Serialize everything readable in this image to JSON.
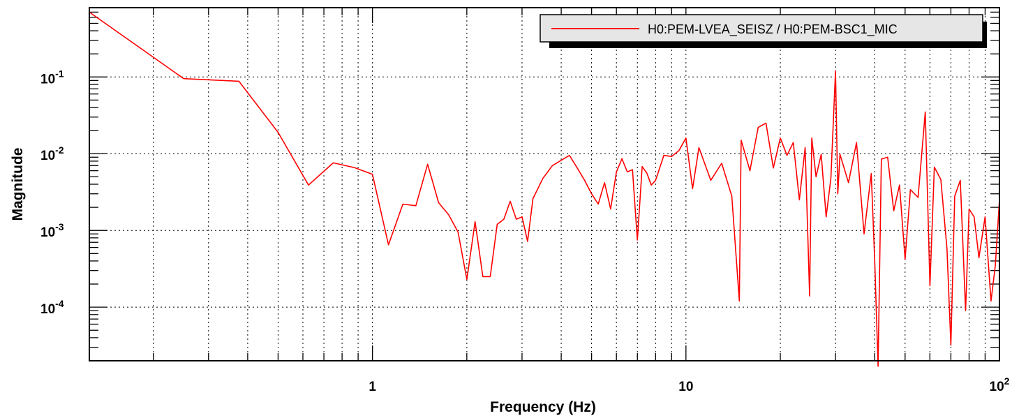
{
  "chart_data": {
    "type": "line",
    "title": "",
    "xlabel": "Frequency (Hz)",
    "ylabel": "Magnitude",
    "xscale": "log",
    "yscale": "log",
    "xlim": [
      0.125,
      100
    ],
    "ylim": [
      2e-05,
      0.8
    ],
    "grid": true,
    "legend_position": "top-right",
    "x_tick_labels": [
      {
        "value": 1,
        "base": "1",
        "exp": ""
      },
      {
        "value": 10,
        "base": "10",
        "exp": ""
      },
      {
        "value": 100,
        "base": "10",
        "exp": "2"
      }
    ],
    "y_tick_labels": [
      {
        "value": 0.1,
        "base": "10",
        "exp": "-1"
      },
      {
        "value": 0.01,
        "base": "10",
        "exp": "-2"
      },
      {
        "value": 0.001,
        "base": "10",
        "exp": "-3"
      },
      {
        "value": 0.0001,
        "base": "10",
        "exp": "-4"
      }
    ],
    "series": [
      {
        "name": "H0:PEM-LVEA_SEISZ / H0:PEM-BSC1_MIC",
        "color": "#ff0000",
        "x": [
          0.125,
          0.25,
          0.375,
          0.5,
          0.625,
          0.75,
          0.875,
          1.0,
          1.125,
          1.25,
          1.375,
          1.5,
          1.625,
          1.75,
          1.875,
          2.0,
          2.125,
          2.25,
          2.375,
          2.5,
          2.625,
          2.75,
          2.875,
          3.0,
          3.125,
          3.25,
          3.5,
          3.75,
          4.0,
          4.25,
          4.5,
          4.75,
          5.0,
          5.25,
          5.5,
          5.75,
          6.0,
          6.25,
          6.5,
          6.75,
          7.0,
          7.25,
          7.5,
          7.75,
          8.0,
          8.5,
          9.0,
          9.5,
          10.0,
          10.5,
          11.0,
          12.0,
          13.0,
          14.0,
          14.8,
          15.0,
          16.0,
          17.0,
          18.0,
          19.0,
          20.0,
          21.0,
          22.0,
          23.0,
          24.0,
          24.8,
          25.2,
          26.0,
          27.0,
          28.0,
          29.0,
          30.0,
          30.5,
          31.0,
          33.0,
          35.0,
          37.0,
          39.0,
          40.0,
          41.0,
          42.0,
          44.0,
          46.0,
          48.0,
          50.0,
          52.0,
          55.0,
          58.0,
          60.0,
          62.0,
          65.0,
          68.0,
          70.0,
          72.0,
          75.0,
          78.0,
          80.0,
          83.0,
          86.0,
          90.0,
          94.0,
          97.0,
          100.0
        ],
        "y": [
          0.7,
          0.095,
          0.088,
          0.019,
          0.0039,
          0.0076,
          0.0066,
          0.0054,
          0.00065,
          0.0022,
          0.0021,
          0.0073,
          0.0023,
          0.0016,
          0.00095,
          0.00023,
          0.0013,
          0.00025,
          0.00025,
          0.0012,
          0.0014,
          0.0024,
          0.0014,
          0.0015,
          0.00072,
          0.0026,
          0.0048,
          0.007,
          0.0082,
          0.0095,
          0.0065,
          0.0045,
          0.003,
          0.0022,
          0.0042,
          0.0019,
          0.0058,
          0.0086,
          0.0058,
          0.0062,
          0.00075,
          0.0068,
          0.0056,
          0.0039,
          0.0045,
          0.0095,
          0.0092,
          0.011,
          0.016,
          0.0035,
          0.012,
          0.0045,
          0.0075,
          0.0028,
          0.00012,
          0.015,
          0.006,
          0.022,
          0.025,
          0.0065,
          0.016,
          0.0095,
          0.014,
          0.0025,
          0.012,
          0.00014,
          0.016,
          0.005,
          0.0098,
          0.0015,
          0.0048,
          0.12,
          0.003,
          0.0098,
          0.0042,
          0.014,
          0.0009,
          0.0055,
          0.0004,
          1.7e-05,
          0.0085,
          0.009,
          0.0018,
          0.0039,
          0.00042,
          0.0034,
          0.0027,
          0.035,
          0.00019,
          0.0067,
          0.0046,
          0.00058,
          3.2e-05,
          0.0028,
          0.0045,
          9e-05,
          0.0019,
          0.0015,
          0.00044,
          0.0015,
          0.00012,
          0.00035,
          0.0025
        ]
      }
    ]
  }
}
